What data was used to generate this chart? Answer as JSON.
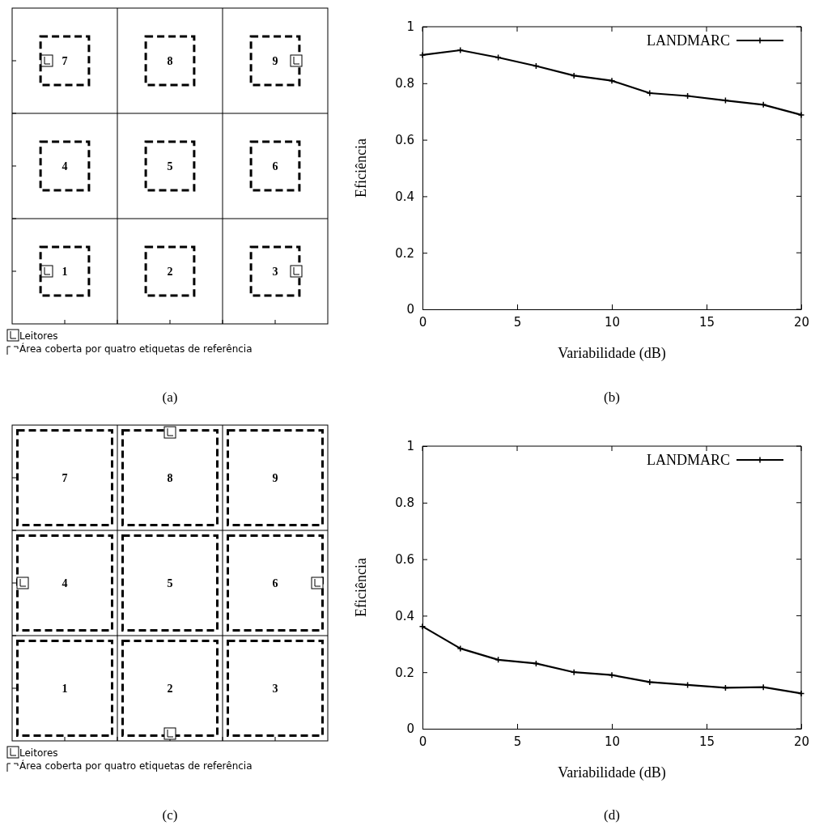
{
  "chart_data": [
    {
      "type": "other",
      "annotations": [
        "7",
        "8",
        "9",
        "4",
        "5",
        "6",
        "1",
        "2",
        "3",
        "Leitores",
        "Área coberta por quatro etiquetas de referência",
        "(a)"
      ]
    },
    {
      "type": "line",
      "xlabel": "Variabilidade (dB)",
      "ylabel": "Eficiência",
      "annotations": [
        "(b)"
      ],
      "xlim": [
        0,
        20
      ],
      "xticks": [
        0,
        5,
        10,
        15,
        20
      ],
      "ylim": [
        0,
        1
      ],
      "yticks": [
        0,
        0.2,
        0.4,
        0.6,
        0.8,
        1
      ],
      "legend": "top right",
      "marker": "cross",
      "line_style": "solid",
      "series": [
        {
          "name": "LANDMARC",
          "color": "#000000",
          "x": [
            0,
            2,
            4,
            6,
            8,
            10,
            12,
            14,
            16,
            18,
            20
          ],
          "values": [
            0.9,
            0.917,
            0.891,
            0.861,
            0.827,
            0.809,
            0.765,
            0.755,
            0.739,
            0.724,
            0.688
          ]
        }
      ]
    },
    {
      "type": "other",
      "annotations": [
        "7",
        "8",
        "9",
        "4",
        "5",
        "6",
        "1",
        "2",
        "3",
        "Leitores",
        "Área coberta por quatro etiquetas de referência",
        "(c)"
      ]
    },
    {
      "type": "line",
      "xlabel": "Variabilidade (dB)",
      "ylabel": "Eficiência",
      "annotations": [
        "(d)"
      ],
      "xlim": [
        0,
        20
      ],
      "xticks": [
        0,
        5,
        10,
        15,
        20
      ],
      "ylim": [
        0,
        1
      ],
      "yticks": [
        0,
        0.2,
        0.4,
        0.6,
        0.8,
        1
      ],
      "legend": "top right",
      "marker": "cross",
      "line_style": "solid",
      "series": [
        {
          "name": "LANDMARC",
          "color": "#000000",
          "x": [
            0,
            2,
            4,
            6,
            8,
            10,
            12,
            14,
            16,
            18,
            20
          ],
          "values": [
            0.362,
            0.284,
            0.244,
            0.231,
            0.2,
            0.19,
            0.165,
            0.155,
            0.145,
            0.147,
            0.125
          ]
        }
      ]
    }
  ]
}
